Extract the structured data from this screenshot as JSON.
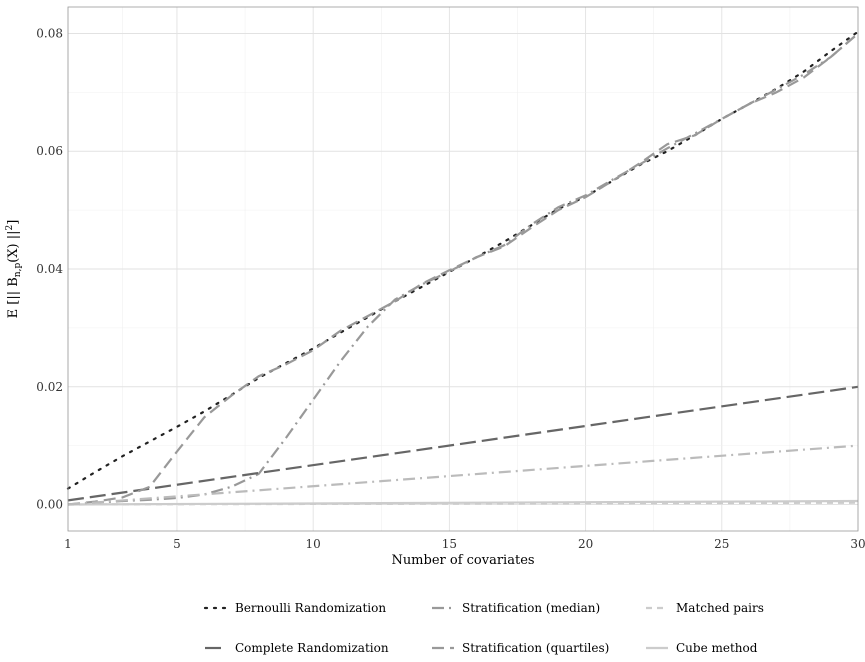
{
  "chart_data": {
    "type": "line",
    "xlabel": "Number of covariates",
    "ylabel_main": "E [|| B",
    "ylabel_sub": "n,p",
    "ylabel_mid": "(X) ||",
    "ylabel_sup": "2",
    "ylabel_end": "]",
    "xlim": [
      1,
      30
    ],
    "ylim": [
      -0.0045,
      0.0845
    ],
    "x_ticks": [
      1,
      5,
      10,
      15,
      20,
      25,
      30
    ],
    "x_tick_labels": [
      "1",
      "5",
      "10",
      "15",
      "20",
      "25",
      "30"
    ],
    "y_ticks": [
      0,
      0.02,
      0.04,
      0.06,
      0.08
    ],
    "y_tick_labels": [
      "0.00",
      "0.02",
      "0.04",
      "0.06",
      "0.08"
    ],
    "grid": true,
    "legend_position": "bottom",
    "series": [
      {
        "name": "Bernoulli Randomization",
        "color": "#222222",
        "dash": "dotted",
        "x": [
          1,
          2,
          3,
          4,
          5,
          6,
          7,
          8,
          9,
          10,
          11,
          12,
          13,
          14,
          15,
          16,
          17,
          18,
          19,
          20,
          21,
          22,
          23,
          24,
          25,
          26,
          27,
          28,
          29,
          30
        ],
        "values": [
          0.0027,
          0.0055,
          0.0082,
          0.0107,
          0.0132,
          0.0158,
          0.0186,
          0.0215,
          0.024,
          0.0265,
          0.0292,
          0.0318,
          0.0345,
          0.037,
          0.0395,
          0.042,
          0.0446,
          0.0474,
          0.0502,
          0.0523,
          0.055,
          0.0577,
          0.06,
          0.0627,
          0.0655,
          0.068,
          0.0706,
          0.0735,
          0.077,
          0.0803
        ]
      },
      {
        "name": "Stratification (median)",
        "color": "#999999",
        "dash": "dashdot",
        "x": [
          1,
          2,
          3,
          4,
          5,
          6,
          7,
          8,
          9,
          10,
          11,
          12,
          13,
          14,
          15,
          16,
          17,
          18,
          19,
          20,
          21,
          22,
          23,
          24,
          25,
          26,
          27,
          28,
          29,
          30
        ],
        "values": [
          0.0,
          0.0003,
          0.0006,
          0.0008,
          0.0011,
          0.0017,
          0.003,
          0.0052,
          0.0113,
          0.0178,
          0.0243,
          0.0302,
          0.0348,
          0.0374,
          0.0396,
          0.042,
          0.044,
          0.0475,
          0.0505,
          0.0525,
          0.0552,
          0.0578,
          0.0605,
          0.063,
          0.0655,
          0.068,
          0.0705,
          0.073,
          0.076,
          0.08
        ]
      },
      {
        "name": "Matched pairs",
        "color": "#cccccc",
        "dash": "shortdash",
        "x": [
          1,
          30
        ],
        "values": [
          0.0,
          0.0003
        ]
      },
      {
        "name": "Complete Randomization",
        "color": "#666666",
        "dash": "longdash",
        "x": [
          1,
          30
        ],
        "values": [
          0.0007,
          0.02
        ]
      },
      {
        "name": "Stratification (quartiles)",
        "color": "#999999",
        "dash": "dashed",
        "x": [
          1,
          2,
          3,
          4,
          5,
          6,
          7,
          8,
          9,
          10,
          11,
          12,
          13,
          14,
          15,
          16,
          17,
          18,
          19,
          20,
          21,
          22,
          23,
          24,
          25,
          26,
          27,
          28,
          29,
          30
        ],
        "values": [
          0.0,
          0.0005,
          0.0012,
          0.003,
          0.009,
          0.0148,
          0.0185,
          0.0218,
          0.0238,
          0.0262,
          0.0295,
          0.032,
          0.0345,
          0.0375,
          0.0398,
          0.042,
          0.0438,
          0.047,
          0.05,
          0.0522,
          0.055,
          0.058,
          0.0612,
          0.0627,
          0.0655,
          0.068,
          0.07,
          0.0725,
          0.076,
          0.08
        ]
      },
      {
        "name": "Cube method",
        "color": "#cccccc",
        "dash": "solid",
        "x": [
          1,
          30
        ],
        "values": [
          0.0,
          0.0006
        ]
      },
      {
        "name": "",
        "color": "#bbbbbb",
        "dash": "dashdot",
        "x": [
          1,
          30
        ],
        "values": [
          0.0,
          0.01
        ]
      }
    ]
  }
}
